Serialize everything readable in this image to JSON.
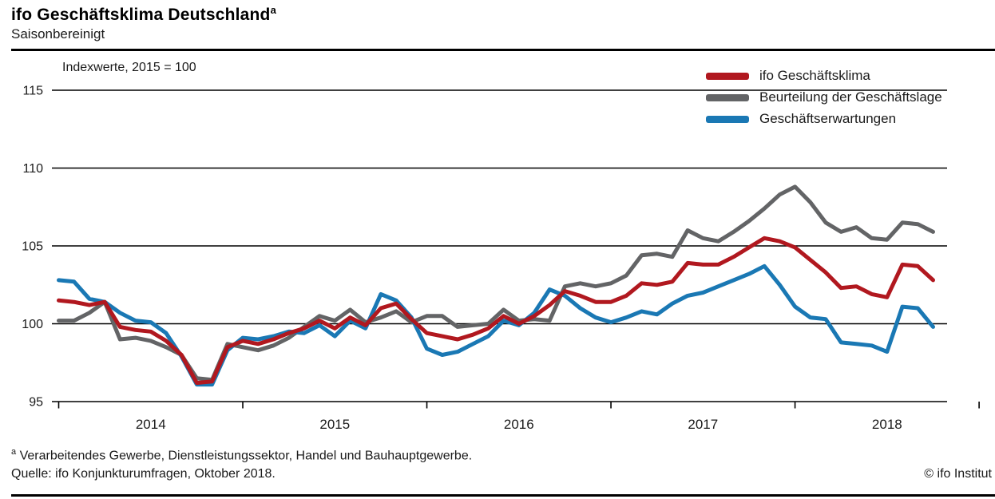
{
  "header": {
    "title": "ifo Geschäftsklima Deutschland",
    "title_sup": "a",
    "subtitle": "Saisonbereinigt"
  },
  "axis_note": "Indexwerte, 2015 = 100",
  "legend": {
    "items": [
      {
        "label": "ifo Geschäftsklima",
        "color": "#b1181f"
      },
      {
        "label": "Beurteilung der Geschäftslage",
        "color": "#636466"
      },
      {
        "label": "Geschäftserwartungen",
        "color": "#1a78b4"
      }
    ]
  },
  "chart_data": {
    "type": "line",
    "title": "ifo Geschäftsklima Deutschland (saisonbereinigt)",
    "unit_note": "Indexwerte, 2015 = 100",
    "grid": true,
    "legend_position": "top-right",
    "ylim": [
      95,
      116
    ],
    "y_ticks": [
      95,
      100,
      105,
      110,
      115
    ],
    "x_tick_years": [
      "2014",
      "2015",
      "2016",
      "2017",
      "2018"
    ],
    "x": [
      "2014-01",
      "2014-02",
      "2014-03",
      "2014-04",
      "2014-05",
      "2014-06",
      "2014-07",
      "2014-08",
      "2014-09",
      "2014-10",
      "2014-11",
      "2014-12",
      "2015-01",
      "2015-02",
      "2015-03",
      "2015-04",
      "2015-05",
      "2015-06",
      "2015-07",
      "2015-08",
      "2015-09",
      "2015-10",
      "2015-11",
      "2015-12",
      "2016-01",
      "2016-02",
      "2016-03",
      "2016-04",
      "2016-05",
      "2016-06",
      "2016-07",
      "2016-08",
      "2016-09",
      "2016-10",
      "2016-11",
      "2016-12",
      "2017-01",
      "2017-02",
      "2017-03",
      "2017-04",
      "2017-05",
      "2017-06",
      "2017-07",
      "2017-08",
      "2017-09",
      "2017-10",
      "2017-11",
      "2017-12",
      "2018-01",
      "2018-02",
      "2018-03",
      "2018-04",
      "2018-05",
      "2018-06",
      "2018-07",
      "2018-08",
      "2018-09",
      "2018-10"
    ],
    "series": [
      {
        "name": "ifo Geschäftsklima",
        "color": "#b1181f",
        "values": [
          101.5,
          101.4,
          101.2,
          101.4,
          99.8,
          99.6,
          99.5,
          98.9,
          98.0,
          96.2,
          96.3,
          98.5,
          98.9,
          98.7,
          99.0,
          99.4,
          99.7,
          100.2,
          99.7,
          100.4,
          99.9,
          101.0,
          101.3,
          100.3,
          99.4,
          99.2,
          99.0,
          99.3,
          99.7,
          100.5,
          100.0,
          100.5,
          101.2,
          102.1,
          101.8,
          101.4,
          101.4,
          101.8,
          102.6,
          102.5,
          102.7,
          103.9,
          103.8,
          103.8,
          104.3,
          104.9,
          105.5,
          105.3,
          104.9,
          104.1,
          103.3,
          102.3,
          102.4,
          101.9,
          101.7,
          103.8,
          103.7,
          102.8
        ]
      },
      {
        "name": "Beurteilung der Geschäftslage",
        "color": "#636466",
        "values": [
          100.2,
          100.2,
          100.7,
          101.4,
          99.0,
          99.1,
          98.9,
          98.5,
          98.0,
          96.5,
          96.4,
          98.7,
          98.5,
          98.3,
          98.6,
          99.1,
          99.8,
          100.5,
          100.2,
          100.9,
          100.1,
          100.4,
          100.8,
          100.1,
          100.5,
          100.5,
          99.8,
          99.9,
          100.0,
          100.9,
          100.2,
          100.3,
          100.2,
          102.4,
          102.6,
          102.4,
          102.6,
          103.1,
          104.4,
          104.5,
          104.3,
          106.0,
          105.5,
          105.3,
          105.9,
          106.6,
          107.4,
          108.3,
          108.8,
          107.8,
          106.5,
          105.9,
          106.2,
          105.5,
          105.4,
          106.5,
          106.4,
          105.9
        ]
      },
      {
        "name": "Geschäftserwartungen",
        "color": "#1a78b4",
        "values": [
          102.8,
          102.7,
          101.6,
          101.4,
          100.7,
          100.2,
          100.1,
          99.4,
          97.9,
          96.1,
          96.1,
          98.3,
          99.1,
          99.0,
          99.2,
          99.5,
          99.4,
          99.9,
          99.2,
          100.2,
          99.7,
          101.9,
          101.5,
          100.4,
          98.4,
          98.0,
          98.2,
          98.7,
          99.2,
          100.2,
          99.9,
          100.7,
          102.2,
          101.8,
          101.0,
          100.4,
          100.1,
          100.4,
          100.8,
          100.6,
          101.3,
          101.8,
          102.0,
          102.4,
          102.8,
          103.2,
          103.7,
          102.5,
          101.1,
          100.4,
          100.3,
          98.8,
          98.7,
          98.6,
          98.2,
          101.1,
          101.0,
          99.8
        ]
      }
    ]
  },
  "footer": {
    "footnote_marker": "a",
    "footnote_text": " Verarbeitendes Gewerbe, Dienstleistungssektor, Handel und Bauhauptgewerbe.",
    "source": "Quelle: ifo Konjunkturumfragen, Oktober 2018.",
    "copyright": "© ifo Institut"
  }
}
